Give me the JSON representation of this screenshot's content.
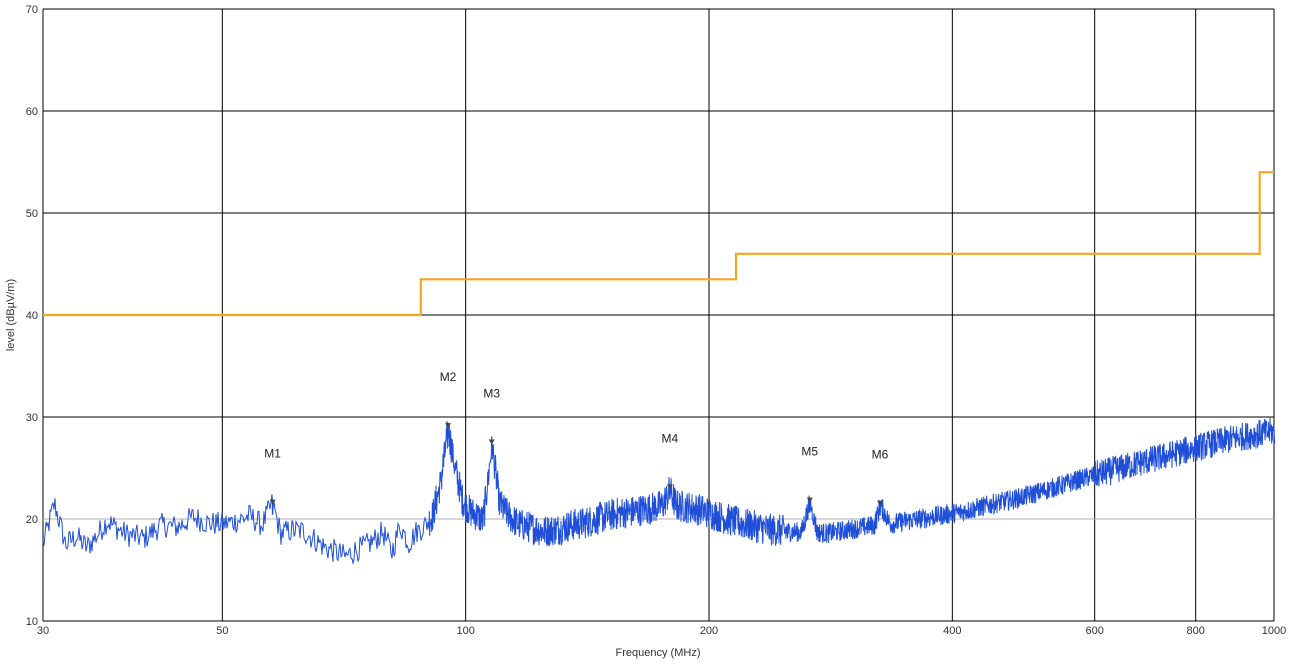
{
  "chart_data": {
    "type": "line",
    "title": "",
    "xlabel": "Frequency (MHz)",
    "ylabel": "level (dBµV/m)",
    "x_scale": "log",
    "xlim": [
      30,
      1000
    ],
    "ylim": [
      10,
      70
    ],
    "grid": true,
    "x_ticks": [
      30,
      50,
      100,
      200,
      400,
      600,
      800,
      1000
    ],
    "y_ticks": [
      10,
      20,
      30,
      40,
      50,
      60,
      70
    ],
    "colors": {
      "measurement": "#1f4fd8",
      "limit": "#f5a623",
      "grid": "#000000",
      "marker": "#444444"
    },
    "series": [
      {
        "kind": "limit",
        "x": [
          30,
          88,
          88,
          216,
          216,
          960,
          960,
          1000
        ],
        "values": [
          40,
          40,
          43.5,
          43.5,
          46,
          46,
          54,
          54
        ]
      },
      {
        "kind": "measurement",
        "x": [
          30,
          31,
          32,
          33,
          34,
          35,
          36,
          38,
          40,
          42,
          44,
          46,
          48,
          50,
          52,
          54,
          56,
          57.7,
          59,
          61,
          63,
          65,
          67,
          69,
          71,
          73,
          75,
          77,
          79,
          81,
          83,
          85,
          87,
          89,
          91,
          93,
          95.1,
          97,
          99,
          101,
          103,
          105,
          107.7,
          110,
          113,
          116,
          120,
          125,
          130,
          135,
          140,
          145,
          150,
          155,
          160,
          165,
          170,
          175,
          178.9,
          182,
          186,
          190,
          195,
          200,
          210,
          220,
          230,
          240,
          250,
          260,
          266.5,
          272,
          280,
          290,
          300,
          310,
          320,
          325.5,
          335,
          350,
          370,
          390,
          410,
          430,
          450,
          480,
          510,
          540,
          570,
          600,
          640,
          680,
          720,
          760,
          800,
          850,
          900,
          950,
          1000
        ],
        "values": [
          17.5,
          21.5,
          17.5,
          18.3,
          17.2,
          18.4,
          19.8,
          18.5,
          18.1,
          19.4,
          19.2,
          20.2,
          19.6,
          19.5,
          19.8,
          20.3,
          19.4,
          21.6,
          18.6,
          18.9,
          18.8,
          18.0,
          17.2,
          16.8,
          16.3,
          16.9,
          17.3,
          17.9,
          18.7,
          16.7,
          19.4,
          17.6,
          18.8,
          19.3,
          20.4,
          23.5,
          28.8,
          24.8,
          21.9,
          20.8,
          20.4,
          19.8,
          27.3,
          21.5,
          20.3,
          19.5,
          19.2,
          18.8,
          19.0,
          19.4,
          19.6,
          20.0,
          20.3,
          20.6,
          20.7,
          20.9,
          21.1,
          21.3,
          22.8,
          21.3,
          21.2,
          21.1,
          20.9,
          20.6,
          20.0,
          19.5,
          19.2,
          18.9,
          18.8,
          18.7,
          21.6,
          18.7,
          18.6,
          18.8,
          19.0,
          19.2,
          19.4,
          21.3,
          19.5,
          19.8,
          20.1,
          20.4,
          20.7,
          21.1,
          21.5,
          22.0,
          22.6,
          23.2,
          23.8,
          24.3,
          24.9,
          25.5,
          26.0,
          26.5,
          27.0,
          27.5,
          28.0,
          28.3,
          28.6
        ]
      }
    ],
    "markers": [
      {
        "label": "M1",
        "x": 57.7,
        "y": 21.6
      },
      {
        "label": "M2",
        "x": 95.1,
        "y": 29.1
      },
      {
        "label": "M3",
        "x": 107.7,
        "y": 27.5
      },
      {
        "label": "M4",
        "x": 178.9,
        "y": 23.1
      },
      {
        "label": "M5",
        "x": 266.5,
        "y": 21.8
      },
      {
        "label": "M6",
        "x": 325.5,
        "y": 21.5
      }
    ]
  }
}
